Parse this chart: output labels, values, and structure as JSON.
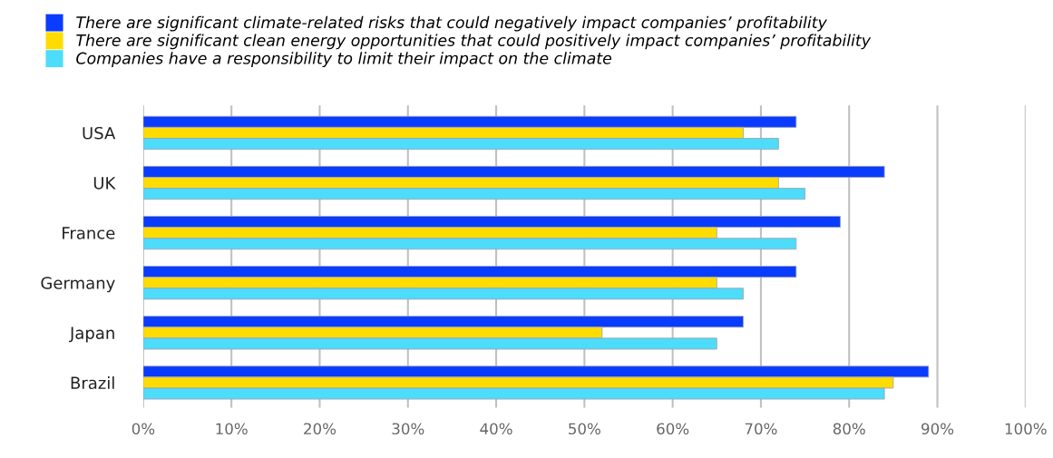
{
  "chart_data": {
    "type": "bar",
    "orientation": "horizontal",
    "categories": [
      "USA",
      "UK",
      "France",
      "Germany",
      "Japan",
      "Brazil"
    ],
    "series": [
      {
        "name": "There are significant climate-related risks that could negatively impact companies’ profitability",
        "color": "#0a3cff",
        "values": [
          74,
          84,
          79,
          74,
          68,
          89
        ]
      },
      {
        "name": "There are significant clean energy opportunities that could positively impact companies’ profitability",
        "color": "#ffdc00",
        "values": [
          68,
          72,
          65,
          65,
          52,
          85
        ]
      },
      {
        "name": "Companies have a responsibility to limit their impact on the climate",
        "color": "#4ddcfa",
        "values": [
          72,
          75,
          74,
          68,
          65,
          84
        ]
      }
    ],
    "xlim": [
      0,
      100
    ],
    "xticks": [
      {
        "value": 0,
        "label": "0%"
      },
      {
        "value": 10,
        "label": "10%"
      },
      {
        "value": 20,
        "label": "20%"
      },
      {
        "value": 30,
        "label": "30%"
      },
      {
        "value": 40,
        "label": "40%"
      },
      {
        "value": 50,
        "label": "50%"
      },
      {
        "value": 60,
        "label": "60%"
      },
      {
        "value": 70,
        "label": "70%"
      },
      {
        "value": 80,
        "label": "80%"
      },
      {
        "value": 90,
        "label": "90%"
      },
      {
        "value": 100,
        "label": "100%"
      }
    ],
    "grid": "x",
    "legend": "top left"
  }
}
